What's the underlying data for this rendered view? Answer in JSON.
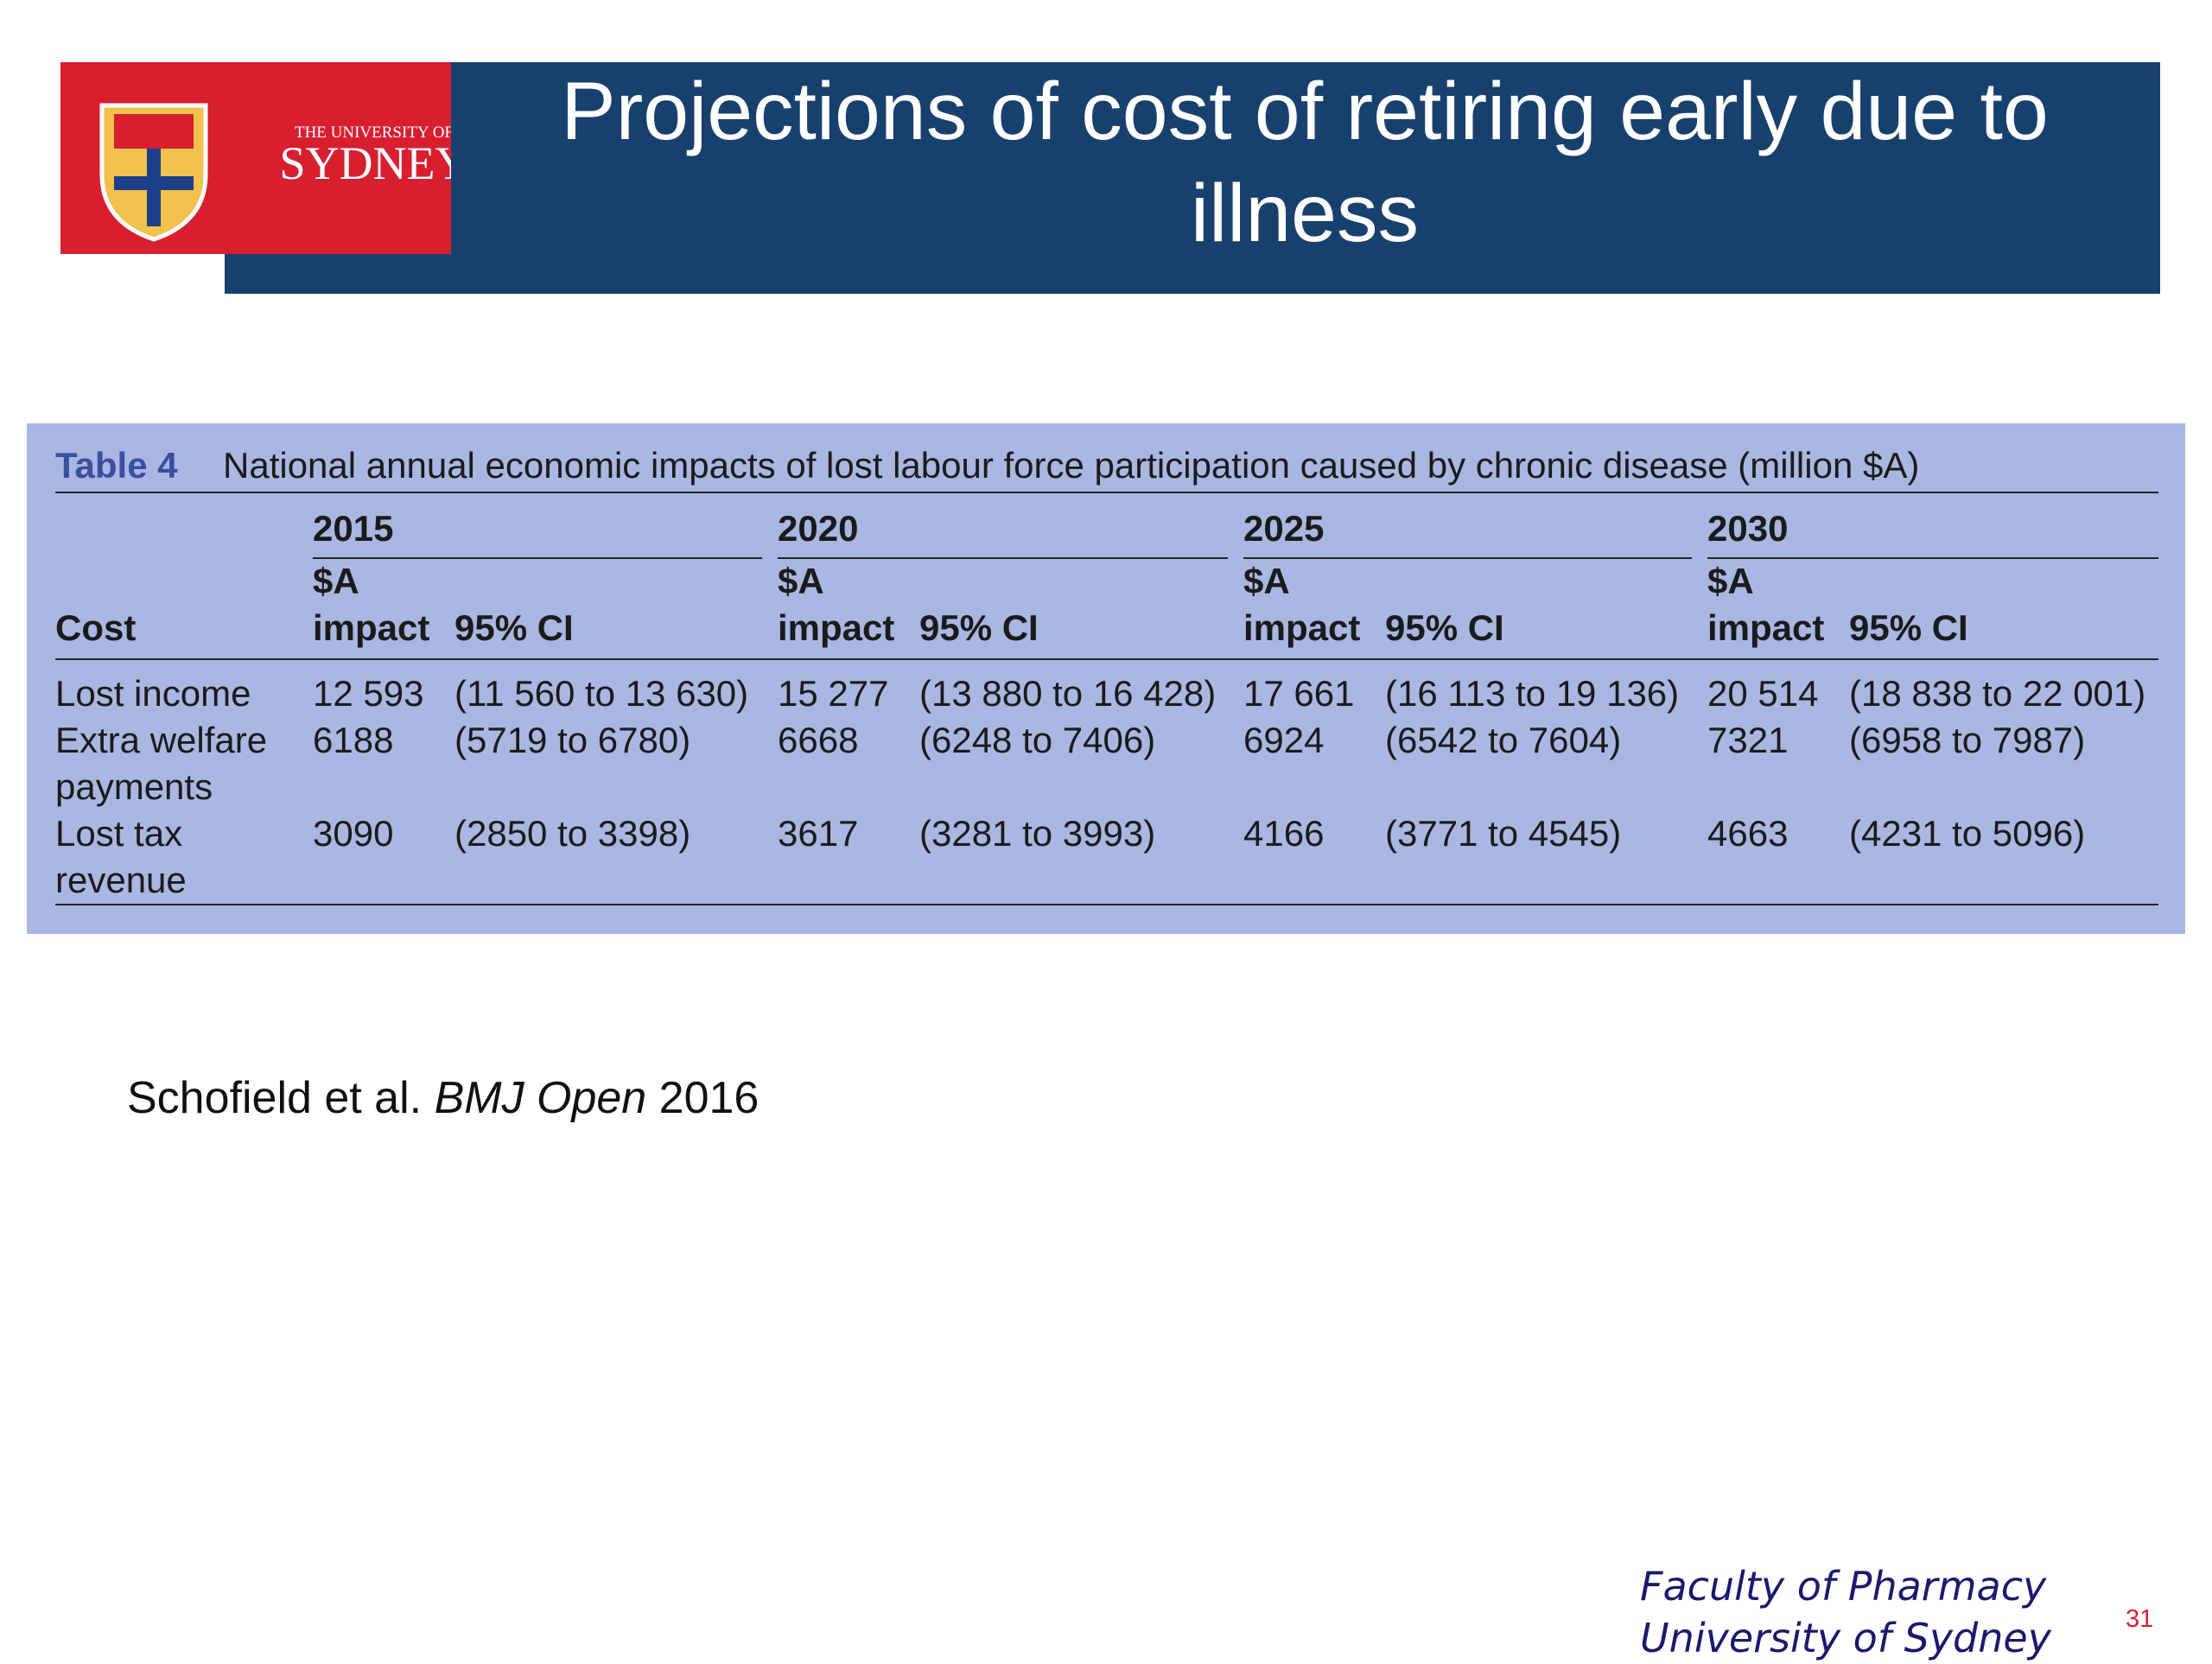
{
  "header": {
    "title": "Projections of cost of retiring early due to illness",
    "logo_small": "THE UNIVERSITY OF",
    "logo_big": "SYDNEY"
  },
  "table": {
    "label": "Table 4",
    "caption": "National annual economic impacts of lost labour force participation caused by chronic disease (million $A)",
    "cost_header": "Cost",
    "years": [
      "2015",
      "2020",
      "2025",
      "2030"
    ],
    "impact_header": [
      "$A",
      "impact"
    ],
    "ci_header": "95% CI",
    "rows": [
      {
        "label": "Lost income",
        "cells": [
          "12 593",
          "(11 560 to 13 630)",
          "15 277",
          "(13 880 to 16 428)",
          "17 661",
          "(16 113 to 19 136)",
          "20 514",
          "(18 838 to 22 001)"
        ]
      },
      {
        "label": "Extra welfare payments",
        "cells": [
          "6188",
          "(5719 to 6780)",
          "6668",
          "(6248 to 7406)",
          "6924",
          "(6542 to 7604)",
          "7321",
          "(6958 to 7987)"
        ]
      },
      {
        "label": "Lost tax revenue",
        "cells": [
          "3090",
          "(2850 to 3398)",
          "3617",
          "(3281 to 3993)",
          "4166",
          "(3771 to 4545)",
          "4663",
          "(4231 to 5096)"
        ]
      }
    ]
  },
  "citation": {
    "authors": "Schofield et al.",
    "journal": "BMJ Open",
    "year": "2016"
  },
  "footer": {
    "line1": "Faculty of Pharmacy",
    "line2": "University of Sydney",
    "page": "31"
  }
}
